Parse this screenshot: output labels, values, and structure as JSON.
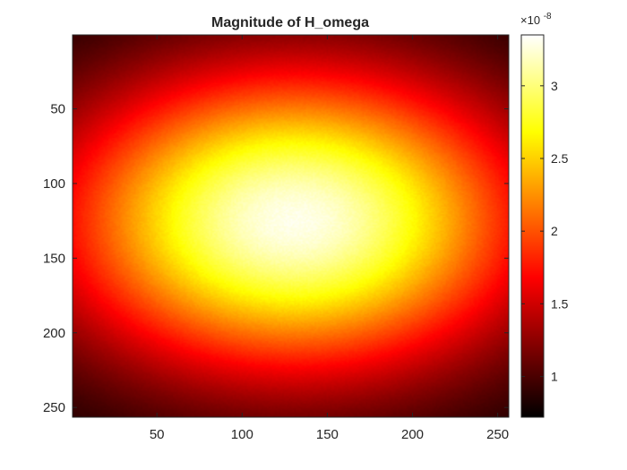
{
  "chart_data": {
    "type": "heatmap",
    "title": "Magnitude of H_omega",
    "xlabel": "",
    "ylabel": "",
    "xlim": [
      0.5,
      256.5
    ],
    "ylim": [
      256.5,
      0.5
    ],
    "y_direction": "reversed",
    "x_ticks": [
      50,
      100,
      150,
      200,
      250
    ],
    "y_ticks": [
      50,
      100,
      150,
      200,
      250
    ],
    "colormap": "hot",
    "grid": false,
    "field": {
      "shape": "gaussian-blob",
      "grid_size": [
        256,
        256
      ],
      "peak_location": {
        "x": 130,
        "y": 125
      },
      "spread": {
        "x": 95,
        "y": 70
      },
      "peak_value": 3.35e-08,
      "min_value": 7.2e-09
    },
    "colorbar": {
      "range": [
        0.72,
        3.35
      ],
      "ticks": [
        1,
        1.5,
        2,
        2.5,
        3
      ],
      "exponent_label": "×10",
      "exponent": "-8"
    }
  }
}
